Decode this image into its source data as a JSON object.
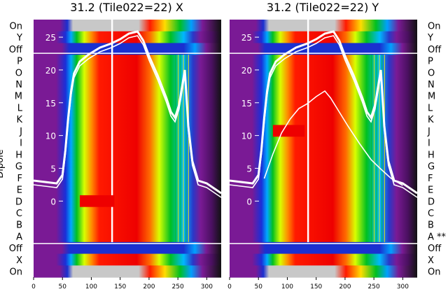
{
  "figure": {
    "left_ylabel": "Dipole",
    "left_row_labels": [
      "On",
      "Y",
      "Off",
      "P",
      "O",
      "N",
      "M",
      "L",
      "K",
      "J",
      "I",
      "H",
      "G",
      "F",
      "E",
      "D",
      "C",
      "B",
      "A",
      "Off",
      "X",
      "On"
    ],
    "right_row_labels": [
      "On",
      "Y",
      "Off",
      "P",
      "O",
      "N",
      "M",
      "L",
      "K",
      "J",
      "I",
      "H",
      "G",
      "F",
      "E",
      "D",
      "C",
      "B",
      "A **",
      "Off",
      "X",
      "On"
    ]
  },
  "chart_data": [
    {
      "type": "heatmap",
      "title": "31.2 (Tile022=22) X",
      "xticks": [
        0,
        50,
        100,
        150,
        200,
        250,
        300
      ],
      "xlim": [
        0,
        325
      ],
      "inner_yticks": [
        0,
        5,
        10,
        15,
        20,
        25
      ],
      "colormap": "spectral",
      "overlay_curves": 2
    },
    {
      "type": "heatmap",
      "title": "31.2 (Tile022=22) Y",
      "xticks": [
        0,
        50,
        100,
        150,
        200,
        250,
        300
      ],
      "xlim": [
        0,
        325
      ],
      "inner_yticks": [
        0,
        5,
        10,
        15,
        20,
        25
      ],
      "colormap": "spectral",
      "overlay_curves": 3
    }
  ]
}
